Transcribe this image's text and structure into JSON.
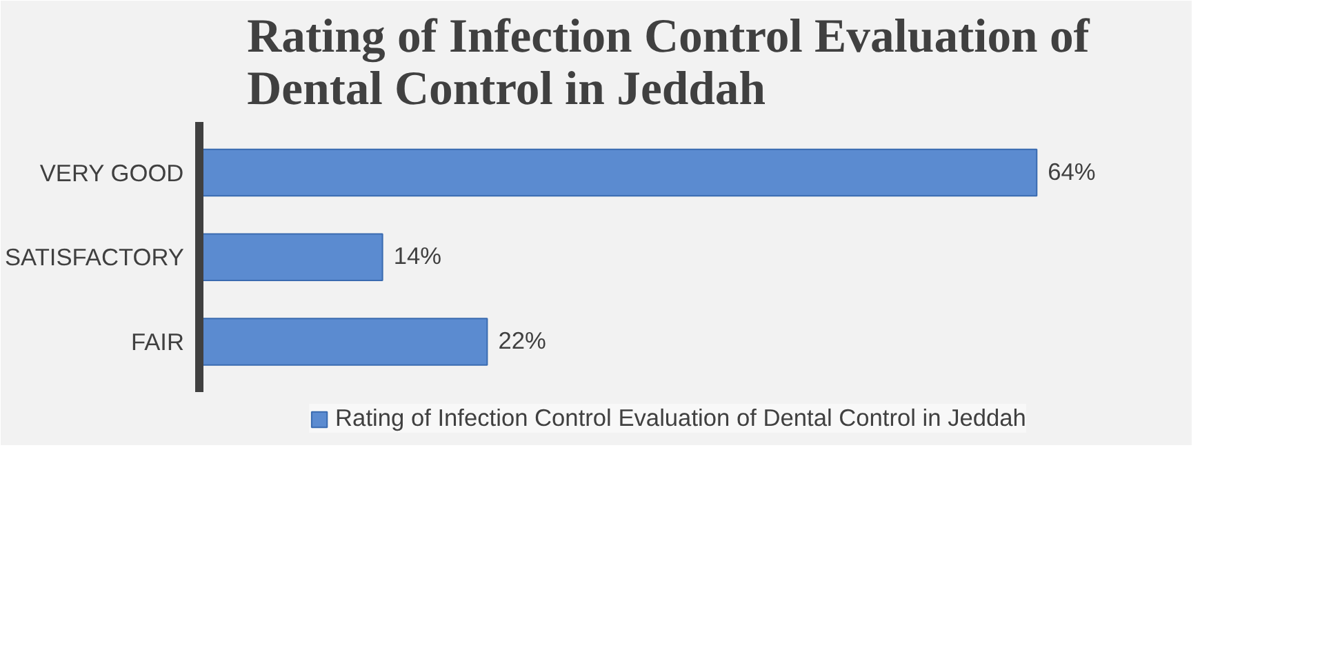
{
  "chart_data": {
    "type": "bar",
    "orientation": "horizontal",
    "title": "Rating of Infection Control Evaluation of Dental Control in Jeddah",
    "categories": [
      "VERY GOOD",
      "SATISFACTORY",
      "FAIR"
    ],
    "series": [
      {
        "name": "Rating of Infection Control Evaluation of Dental Control in Jeddah",
        "color": "#5b8bd0",
        "values": [
          64,
          14,
          22
        ],
        "value_labels": [
          "64%",
          "14%",
          "22%"
        ]
      }
    ],
    "legend": "bottom"
  }
}
